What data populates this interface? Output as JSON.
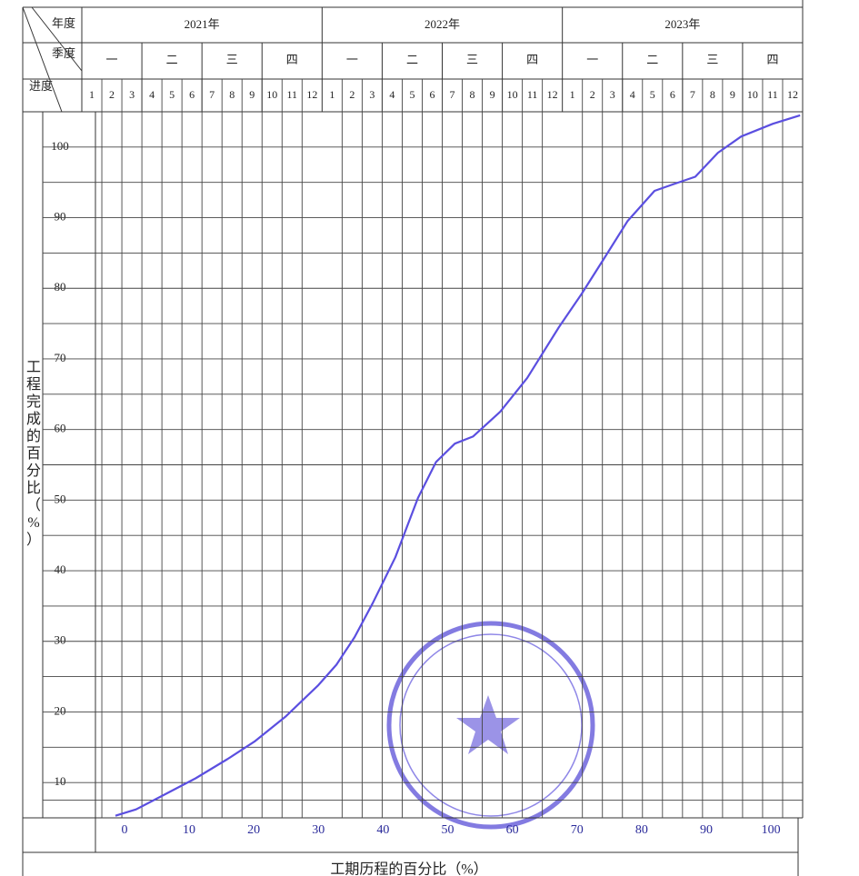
{
  "header": {
    "corner": {
      "year": "年度",
      "quarter": "季度",
      "progress": "进度"
    },
    "years": [
      "2021年",
      "2022年",
      "2023年"
    ],
    "quarters": [
      "一",
      "二",
      "三",
      "四"
    ],
    "months": [
      1,
      2,
      3,
      4,
      5,
      6,
      7,
      8,
      9,
      10,
      11,
      12
    ]
  },
  "chart_data": {
    "type": "line",
    "y_label": "工程完成的百分比（%）",
    "x_label": "工期历程的百分比（%）",
    "xlim": [
      -6.6,
      104.9
    ],
    "ylim": [
      5,
      105
    ],
    "xticks": [
      0,
      10,
      20,
      30,
      40,
      50,
      60,
      70,
      80,
      90,
      100
    ],
    "yticks": [
      10,
      20,
      30,
      40,
      50,
      60,
      70,
      80,
      90,
      100
    ],
    "grid": true,
    "series": [
      {
        "color": "#5b4fe0",
        "x": [
          -1.4,
          1.8,
          6.0,
          11.0,
          15.9,
          20.1,
          25.0,
          30.0,
          32.8,
          35.6,
          38.4,
          41.9,
          45.4,
          48.2,
          51.1,
          53.9,
          58.1,
          62.3,
          67.2,
          70.7,
          74.3,
          77.8,
          82.0,
          84.8,
          88.3,
          91.8,
          95.4,
          100.3,
          104.5
        ],
        "values": [
          5.3,
          6.2,
          8.2,
          10.6,
          13.3,
          15.8,
          19.4,
          23.8,
          26.7,
          30.6,
          35.4,
          41.9,
          50.3,
          55.4,
          58.0,
          59.0,
          62.5,
          67.3,
          74.5,
          79.2,
          84.4,
          89.5,
          93.8,
          94.7,
          95.8,
          99.2,
          101.5,
          103.3,
          104.5
        ]
      }
    ]
  }
}
